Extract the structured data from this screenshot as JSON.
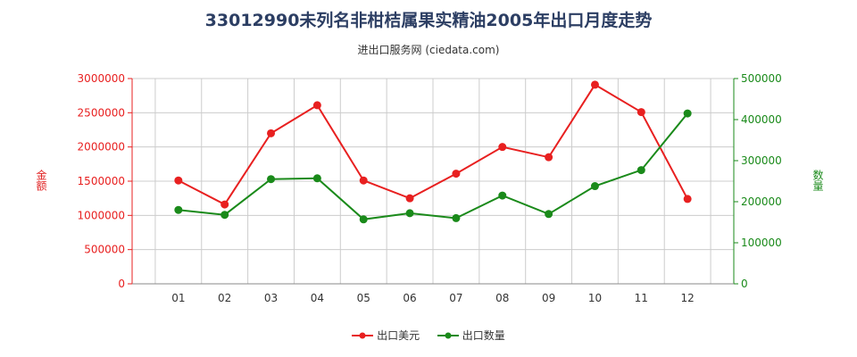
{
  "title": "33012990未列名非柑桔属果实精油2005年出口月度走势",
  "subtitle": "进出口服务网 (ciedata.com)",
  "y_left_title": "金额",
  "y_right_title": "数量",
  "colors": {
    "amount": "#e82020",
    "quantity": "#1a8a1a",
    "grid": "#cccccc"
  },
  "chart_data": {
    "type": "line",
    "categories": [
      "01",
      "02",
      "03",
      "04",
      "05",
      "06",
      "07",
      "08",
      "09",
      "10",
      "11",
      "12"
    ],
    "series": [
      {
        "name": "出口美元",
        "axis": "left",
        "values": [
          1510000,
          1160000,
          2200000,
          2610000,
          1510000,
          1250000,
          1610000,
          2000000,
          1850000,
          2910000,
          2510000,
          1240000
        ]
      },
      {
        "name": "出口数量",
        "axis": "right",
        "values": [
          180000,
          168000,
          255000,
          257000,
          157000,
          172000,
          160000,
          215000,
          170000,
          238000,
          277000,
          415000
        ]
      }
    ],
    "y_left": {
      "min": 0,
      "max": 3000000,
      "ticks": [
        "0",
        "500000",
        "1000000",
        "1500000",
        "2000000",
        "2500000",
        "3000000"
      ]
    },
    "y_right": {
      "min": 0,
      "max": 500000,
      "ticks": [
        "0",
        "100000",
        "200000",
        "300000",
        "400000",
        "500000"
      ]
    },
    "grid": true,
    "legend_position": "bottom"
  }
}
